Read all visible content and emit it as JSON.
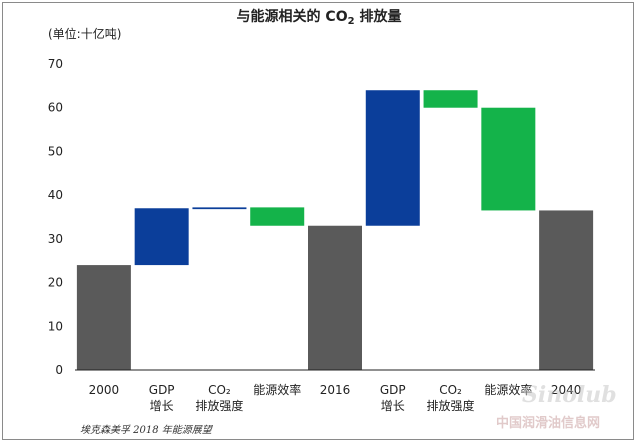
{
  "title_main": "与能源相关的 CO",
  "title_sub": "2",
  "title_tail": " 排放量",
  "unit_label": "(单位:十亿吨)",
  "source": "埃克森美孚 2018 年能源展望",
  "watermark": {
    "logo": "Sinolub",
    "text": "中国润滑油信息网"
  },
  "colors": {
    "total": "#5a5a5a",
    "increase": "#0b3e9a",
    "decrease": "#14b34a",
    "axis": "#222222"
  },
  "chart_data": {
    "type": "waterfall",
    "title": "与能源相关的 CO2 排放量",
    "ylabel": "(单位:十亿吨)",
    "ylim": [
      0,
      70
    ],
    "yticks": [
      0,
      10,
      20,
      30,
      40,
      50,
      60,
      70
    ],
    "grid": false,
    "bars": [
      {
        "label": [
          "2000"
        ],
        "kind": "total",
        "start": 0,
        "end": 24
      },
      {
        "label": [
          "GDP",
          "增长"
        ],
        "kind": "increase",
        "start": 24,
        "end": 37
      },
      {
        "label": [
          "CO₂",
          "排放强度"
        ],
        "kind": "increase",
        "start": 36.8,
        "end": 37.2
      },
      {
        "label": [
          "能源效率"
        ],
        "kind": "decrease",
        "start": 37.2,
        "end": 33
      },
      {
        "label": [
          "2016"
        ],
        "kind": "total",
        "start": 0,
        "end": 33
      },
      {
        "label": [
          "GDP",
          "增长"
        ],
        "kind": "increase",
        "start": 33,
        "end": 64
      },
      {
        "label": [
          "CO₂",
          "排放强度"
        ],
        "kind": "decrease",
        "start": 64,
        "end": 60
      },
      {
        "label": [
          "能源效率"
        ],
        "kind": "decrease",
        "start": 60,
        "end": 36.5
      },
      {
        "label": [
          "2040"
        ],
        "kind": "total",
        "start": 0,
        "end": 36.5
      }
    ]
  }
}
